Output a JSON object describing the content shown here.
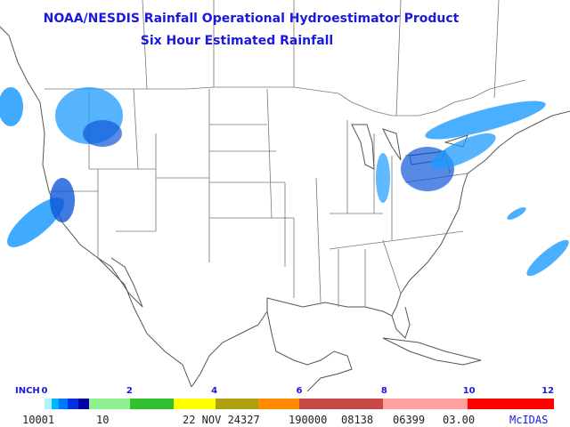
{
  "header": {
    "title": "NOAA/NESDIS Rainfall Operational Hydroestimator Product",
    "subtitle": "Six Hour Estimated Rainfall"
  },
  "legend": {
    "unit": "INCH",
    "ticks": [
      0,
      2,
      4,
      6,
      8,
      10,
      12
    ]
  },
  "footer": {
    "fields": [
      "10001",
      "10",
      "22 NOV 24327",
      "190000",
      "08138",
      "06399",
      "03.00"
    ],
    "brand": "McIDAS"
  }
}
